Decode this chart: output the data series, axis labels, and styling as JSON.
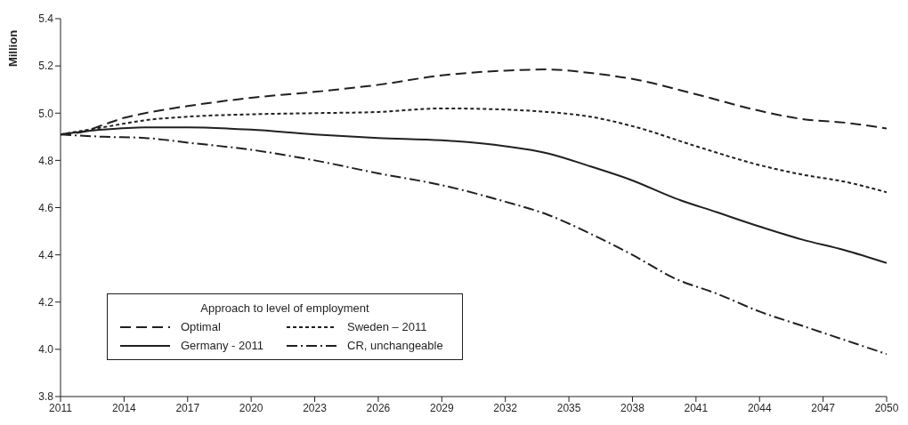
{
  "chart_data": {
    "type": "line",
    "ylabel": "Million",
    "legend_title": "Approach to level of employment",
    "legend": "bottom left",
    "grid": false,
    "marker": "none",
    "xlim": [
      2011,
      2050
    ],
    "xticks": [
      2011,
      2014,
      2017,
      2020,
      2023,
      2026,
      2029,
      2032,
      2035,
      2038,
      2041,
      2044,
      2047,
      2050
    ],
    "ylim": [
      3.8,
      5.4
    ],
    "yticks": [
      3.8,
      {
        "value": 4,
        "label": "4.0"
      },
      4.2,
      4.4,
      4.6,
      4.8,
      {
        "value": 5,
        "label": "5.0"
      },
      5.2,
      5.4
    ],
    "series": [
      {
        "name": "Optimal",
        "color": "#231f20",
        "line_style": "dashed",
        "x": [
          2011,
          2012,
          2013,
          2014,
          2015,
          2017,
          2020,
          2023,
          2026,
          2029,
          2032,
          2034,
          2036,
          2038,
          2041,
          2044,
          2046,
          2048,
          2050
        ],
        "values": [
          4.91,
          4.92,
          4.95,
          4.98,
          5.0,
          5.03,
          5.065,
          5.09,
          5.12,
          5.16,
          5.18,
          5.185,
          5.17,
          5.145,
          5.08,
          5.01,
          4.975,
          4.96,
          4.935
        ]
      },
      {
        "name": "Sweden – 2011",
        "color": "#231f20",
        "line_style": "dotted",
        "x": [
          2011,
          2013,
          2015,
          2017,
          2020,
          2023,
          2026,
          2029,
          2032,
          2034,
          2036,
          2038,
          2041,
          2044,
          2046,
          2048,
          2050
        ],
        "values": [
          4.91,
          4.94,
          4.97,
          4.985,
          4.995,
          5.0,
          5.005,
          5.02,
          5.015,
          5.005,
          4.985,
          4.945,
          4.86,
          4.78,
          4.74,
          4.71,
          4.665
        ]
      },
      {
        "name": "Germany - 2011",
        "color": "#231f20",
        "line_style": "solid",
        "x": [
          2011,
          2013,
          2015,
          2017,
          2020,
          2023,
          2026,
          2029,
          2032,
          2034,
          2036,
          2038,
          2040,
          2042,
          2044,
          2046,
          2048,
          2050
        ],
        "values": [
          4.91,
          4.93,
          4.94,
          4.94,
          4.93,
          4.91,
          4.895,
          4.885,
          4.86,
          4.83,
          4.775,
          4.715,
          4.64,
          4.58,
          4.52,
          4.465,
          4.42,
          4.365
        ]
      },
      {
        "name": "CR, unchangeable",
        "color": "#231f20",
        "line_style": "dashdot",
        "x": [
          2011,
          2013,
          2015,
          2017,
          2020,
          2023,
          2026,
          2029,
          2032,
          2034,
          2036,
          2038,
          2040,
          2042,
          2044,
          2046,
          2048,
          2050
        ],
        "values": [
          4.91,
          4.9,
          4.895,
          4.875,
          4.845,
          4.8,
          4.745,
          4.695,
          4.625,
          4.57,
          4.49,
          4.4,
          4.3,
          4.235,
          4.16,
          4.1,
          4.04,
          3.98
        ]
      }
    ]
  }
}
